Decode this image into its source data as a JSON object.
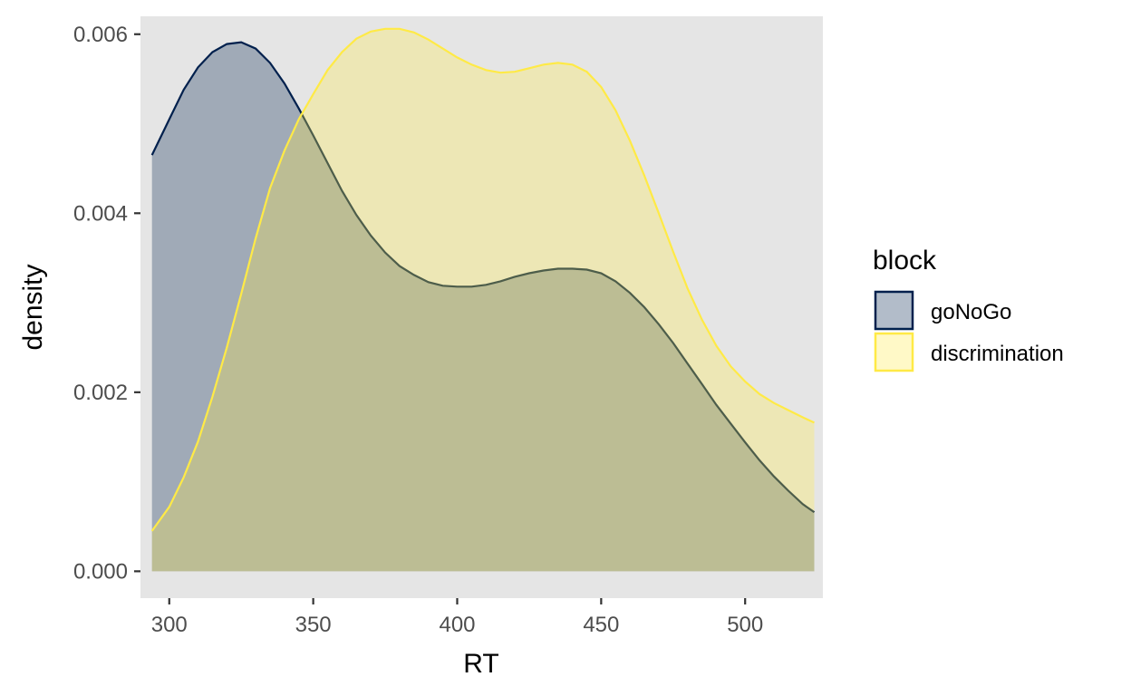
{
  "chart_data": {
    "type": "area",
    "subtype": "density",
    "title": "",
    "xlabel": "RT",
    "ylabel": "density",
    "xlim": [
      290,
      527
    ],
    "ylim": [
      -0.0003,
      0.0062
    ],
    "x_ticks": [
      300,
      350,
      400,
      450,
      500
    ],
    "y_ticks": [
      0.0,
      0.002,
      0.004,
      0.006
    ],
    "y_tick_labels": [
      "0.000",
      "0.002",
      "0.004",
      "0.006"
    ],
    "x_tick_labels": [
      "300",
      "350",
      "400",
      "450",
      "500"
    ],
    "grid": false,
    "panel_background": "#e5e5e5",
    "legend": {
      "title": "block",
      "position": "right",
      "entries": [
        "goNoGo",
        "discrimination"
      ]
    },
    "series": [
      {
        "name": "goNoGo",
        "line_color": "#00204d",
        "fill_color": "#00204d",
        "fill_opacity": 0.3,
        "x": [
          294,
          300,
          305,
          310,
          315,
          320,
          325,
          330,
          335,
          340,
          345,
          350,
          355,
          360,
          365,
          370,
          375,
          380,
          385,
          390,
          395,
          400,
          405,
          410,
          415,
          420,
          425,
          430,
          435,
          440,
          445,
          450,
          455,
          460,
          465,
          470,
          475,
          480,
          485,
          490,
          495,
          500,
          505,
          510,
          515,
          520,
          524
        ],
        "values": [
          0.00465,
          0.00505,
          0.00538,
          0.00563,
          0.0058,
          0.00589,
          0.00591,
          0.00584,
          0.00568,
          0.00545,
          0.00517,
          0.00487,
          0.00456,
          0.00425,
          0.00398,
          0.00375,
          0.00356,
          0.00341,
          0.00331,
          0.00323,
          0.00319,
          0.00318,
          0.00318,
          0.0032,
          0.00324,
          0.00329,
          0.00333,
          0.00336,
          0.00338,
          0.00338,
          0.00337,
          0.00333,
          0.00324,
          0.00311,
          0.00295,
          0.00276,
          0.00255,
          0.00232,
          0.00209,
          0.00186,
          0.00165,
          0.00144,
          0.00124,
          0.00106,
          0.0009,
          0.00075,
          0.00066
        ]
      },
      {
        "name": "discrimination",
        "line_color": "#ffea46",
        "fill_color": "#ffea46",
        "fill_opacity": 0.3,
        "x": [
          294,
          300,
          305,
          310,
          315,
          320,
          325,
          330,
          335,
          340,
          345,
          350,
          355,
          360,
          365,
          370,
          375,
          380,
          385,
          390,
          395,
          400,
          405,
          410,
          415,
          420,
          425,
          430,
          435,
          440,
          445,
          450,
          455,
          460,
          465,
          470,
          475,
          480,
          485,
          490,
          495,
          500,
          505,
          510,
          515,
          520,
          524
        ],
        "values": [
          0.00045,
          0.00072,
          0.00105,
          0.00145,
          0.00195,
          0.0025,
          0.0031,
          0.00372,
          0.00428,
          0.0047,
          0.00505,
          0.00533,
          0.0056,
          0.0058,
          0.00595,
          0.00603,
          0.00606,
          0.00606,
          0.00602,
          0.00594,
          0.00584,
          0.00574,
          0.00566,
          0.0056,
          0.00557,
          0.00558,
          0.00562,
          0.00566,
          0.00568,
          0.00566,
          0.00558,
          0.00541,
          0.00515,
          0.00481,
          0.00442,
          0.004,
          0.00357,
          0.00316,
          0.00281,
          0.00252,
          0.00229,
          0.00212,
          0.00198,
          0.00188,
          0.0018,
          0.00172,
          0.00166
        ]
      }
    ]
  }
}
